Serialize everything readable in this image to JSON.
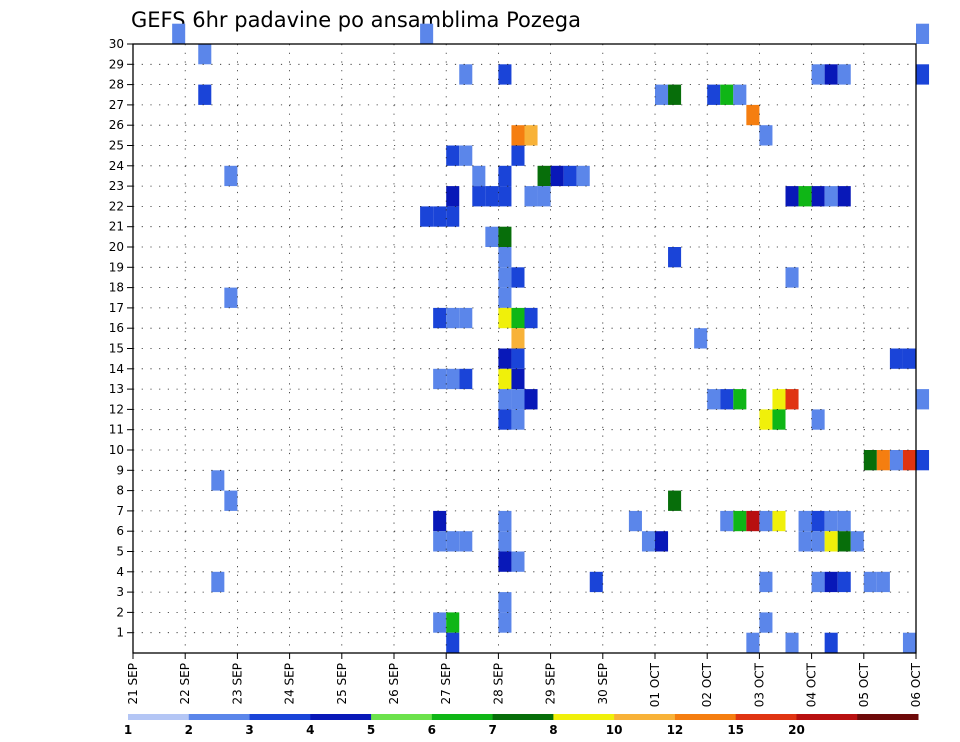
{
  "chart_data": {
    "type": "heatmap",
    "title": "GEFS 6hr padavine po ansamblima Pozega",
    "xlabel": "",
    "ylabel": "",
    "x_start": "21 SEP",
    "x_tick_labels": [
      "21 SEP",
      "22 SEP",
      "23 SEP",
      "24 SEP",
      "25 SEP",
      "26 SEP",
      "27 SEP",
      "28 SEP",
      "29 SEP",
      "30 SEP",
      "01 OCT",
      "02 OCT",
      "03 OCT",
      "04 OCT",
      "05 OCT",
      "06 OCT"
    ],
    "y_tick_labels": [
      "1",
      "2",
      "3",
      "4",
      "5",
      "6",
      "7",
      "8",
      "9",
      "10",
      "11",
      "12",
      "13",
      "14",
      "15",
      "16",
      "17",
      "18",
      "19",
      "20",
      "21",
      "22",
      "23",
      "24",
      "25",
      "26",
      "27",
      "28",
      "29",
      "30"
    ],
    "ylim": [
      0,
      30
    ],
    "grid": true,
    "color_levels": [
      1,
      2,
      3,
      4,
      5,
      6,
      7,
      8,
      10,
      12,
      15,
      20
    ],
    "color_level_labels": [
      "1",
      "2",
      "3",
      "4",
      "5",
      "6",
      "7",
      "8",
      "10",
      "12",
      "15",
      "20"
    ],
    "colors": [
      "#b4c6f5",
      "#5b86ea",
      "#1a44d8",
      "#0818b8",
      "#6ce24c",
      "#0fb616",
      "#076e0a",
      "#f0f00a",
      "#f8b238",
      "#f57e10",
      "#e03412",
      "#b81010",
      "#6e0a0a"
    ],
    "cells": [
      [
        30,
        "21 SEP 18",
        1
      ],
      [
        30,
        "26 SEP 12",
        1
      ],
      [
        30,
        "06 OCT 00",
        1
      ],
      [
        29,
        "22 SEP 06",
        1
      ],
      [
        28,
        "27 SEP 06",
        1
      ],
      [
        28,
        "28 SEP 00",
        2
      ],
      [
        28,
        "04 OCT 00",
        1
      ],
      [
        28,
        "04 OCT 06",
        3
      ],
      [
        28,
        "04 OCT 12",
        1
      ],
      [
        28,
        "06 OCT 00",
        2
      ],
      [
        27,
        "22 SEP 06",
        2
      ],
      [
        27,
        "01 OCT 00",
        1
      ],
      [
        27,
        "01 OCT 06",
        6
      ],
      [
        27,
        "02 OCT 00",
        2
      ],
      [
        27,
        "02 OCT 06",
        5
      ],
      [
        27,
        "02 OCT 12",
        1
      ],
      [
        26,
        "02 OCT 18",
        9
      ],
      [
        25,
        "28 SEP 06",
        9
      ],
      [
        25,
        "28 SEP 12",
        8
      ],
      [
        25,
        "03 OCT 00",
        1
      ],
      [
        24,
        "27 SEP 00",
        2
      ],
      [
        24,
        "27 SEP 06",
        1
      ],
      [
        24,
        "28 SEP 06",
        2
      ],
      [
        23,
        "22 SEP 18",
        1
      ],
      [
        23,
        "27 SEP 12",
        1
      ],
      [
        23,
        "28 SEP 00",
        2
      ],
      [
        23,
        "28 SEP 18",
        6
      ],
      [
        23,
        "29 SEP 00",
        3
      ],
      [
        23,
        "29 SEP 06",
        2
      ],
      [
        23,
        "29 SEP 12",
        1
      ],
      [
        22,
        "27 SEP 00",
        3
      ],
      [
        22,
        "27 SEP 12",
        2
      ],
      [
        22,
        "27 SEP 18",
        2
      ],
      [
        22,
        "28 SEP 00",
        2
      ],
      [
        22,
        "28 SEP 12",
        1
      ],
      [
        22,
        "28 SEP 18",
        1
      ],
      [
        22,
        "03 OCT 12",
        3
      ],
      [
        22,
        "03 OCT 18",
        5
      ],
      [
        22,
        "04 OCT 00",
        3
      ],
      [
        22,
        "04 OCT 06",
        1
      ],
      [
        22,
        "04 OCT 12",
        3
      ],
      [
        21,
        "26 SEP 12",
        2
      ],
      [
        21,
        "26 SEP 18",
        2
      ],
      [
        21,
        "27 SEP 00",
        2
      ],
      [
        20,
        "27 SEP 18",
        1
      ],
      [
        20,
        "28 SEP 00",
        6
      ],
      [
        19,
        "28 SEP 00",
        1
      ],
      [
        19,
        "01 OCT 06",
        2
      ],
      [
        18,
        "28 SEP 00",
        1
      ],
      [
        18,
        "28 SEP 06",
        2
      ],
      [
        18,
        "03 OCT 12",
        1
      ],
      [
        17,
        "22 SEP 18",
        1
      ],
      [
        17,
        "28 SEP 00",
        1
      ],
      [
        16,
        "26 SEP 18",
        2
      ],
      [
        16,
        "27 SEP 00",
        1
      ],
      [
        16,
        "27 SEP 06",
        1
      ],
      [
        16,
        "28 SEP 00",
        7
      ],
      [
        16,
        "28 SEP 06",
        5
      ],
      [
        16,
        "28 SEP 12",
        2
      ],
      [
        15,
        "28 SEP 06",
        8
      ],
      [
        15,
        "01 OCT 18",
        1
      ],
      [
        14,
        "28 SEP 00",
        3
      ],
      [
        14,
        "28 SEP 06",
        2
      ],
      [
        14,
        "05 OCT 12",
        2
      ],
      [
        14,
        "05 OCT 18",
        2
      ],
      [
        13,
        "26 SEP 18",
        1
      ],
      [
        13,
        "27 SEP 00",
        1
      ],
      [
        13,
        "27 SEP 06",
        2
      ],
      [
        13,
        "28 SEP 00",
        7
      ],
      [
        13,
        "28 SEP 06",
        3
      ],
      [
        12,
        "28 SEP 00",
        1
      ],
      [
        12,
        "28 SEP 06",
        1
      ],
      [
        12,
        "28 SEP 12",
        3
      ],
      [
        12,
        "02 OCT 00",
        1
      ],
      [
        12,
        "02 OCT 06",
        2
      ],
      [
        12,
        "02 OCT 12",
        5
      ],
      [
        12,
        "03 OCT 06",
        7
      ],
      [
        12,
        "03 OCT 12",
        10
      ],
      [
        12,
        "06 OCT 00",
        1
      ],
      [
        11,
        "28 SEP 00",
        2
      ],
      [
        11,
        "28 SEP 06",
        1
      ],
      [
        11,
        "03 OCT 00",
        7
      ],
      [
        11,
        "03 OCT 06",
        5
      ],
      [
        11,
        "04 OCT 00",
        1
      ],
      [
        9,
        "05 OCT 00",
        6
      ],
      [
        9,
        "05 OCT 06",
        9
      ],
      [
        9,
        "05 OCT 12",
        1
      ],
      [
        9,
        "05 OCT 18",
        10
      ],
      [
        9,
        "06 OCT 00",
        2
      ],
      [
        8,
        "22 SEP 12",
        1
      ],
      [
        7,
        "22 SEP 18",
        1
      ],
      [
        7,
        "01 OCT 06",
        6
      ],
      [
        6,
        "26 SEP 18",
        3
      ],
      [
        6,
        "28 SEP 00",
        1
      ],
      [
        6,
        "30 SEP 12",
        1
      ],
      [
        6,
        "02 OCT 06",
        1
      ],
      [
        6,
        "02 OCT 12",
        5
      ],
      [
        6,
        "02 OCT 18",
        11
      ],
      [
        6,
        "03 OCT 00",
        1
      ],
      [
        6,
        "03 OCT 06",
        7
      ],
      [
        6,
        "03 OCT 18",
        1
      ],
      [
        6,
        "04 OCT 00",
        2
      ],
      [
        6,
        "04 OCT 06",
        1
      ],
      [
        6,
        "04 OCT 12",
        1
      ],
      [
        5,
        "26 SEP 18",
        1
      ],
      [
        5,
        "27 SEP 00",
        1
      ],
      [
        5,
        "27 SEP 06",
        1
      ],
      [
        5,
        "28 SEP 00",
        1
      ],
      [
        5,
        "30 SEP 18",
        1
      ],
      [
        5,
        "01 OCT 00",
        3
      ],
      [
        5,
        "03 OCT 18",
        1
      ],
      [
        5,
        "04 OCT 00",
        1
      ],
      [
        5,
        "04 OCT 06",
        7
      ],
      [
        5,
        "04 OCT 12",
        6
      ],
      [
        5,
        "04 OCT 18",
        1
      ],
      [
        4,
        "28 SEP 00",
        3
      ],
      [
        4,
        "28 SEP 06",
        1
      ],
      [
        3,
        "22 SEP 12",
        1
      ],
      [
        3,
        "29 SEP 18",
        2
      ],
      [
        3,
        "03 OCT 00",
        1
      ],
      [
        3,
        "04 OCT 00",
        1
      ],
      [
        3,
        "04 OCT 06",
        3
      ],
      [
        3,
        "04 OCT 12",
        2
      ],
      [
        3,
        "05 OCT 00",
        1
      ],
      [
        3,
        "05 OCT 06",
        1
      ],
      [
        2,
        "28 SEP 00",
        1
      ],
      [
        1,
        "26 SEP 18",
        1
      ],
      [
        1,
        "27 SEP 00",
        5
      ],
      [
        1,
        "28 SEP 00",
        1
      ],
      [
        1,
        "03 OCT 00",
        1
      ],
      [
        0,
        "27 SEP 00",
        2
      ],
      [
        0,
        "02 OCT 18",
        1
      ],
      [
        0,
        "03 OCT 12",
        1
      ],
      [
        0,
        "04 OCT 06",
        2
      ],
      [
        0,
        "05 OCT 18",
        1
      ]
    ]
  }
}
